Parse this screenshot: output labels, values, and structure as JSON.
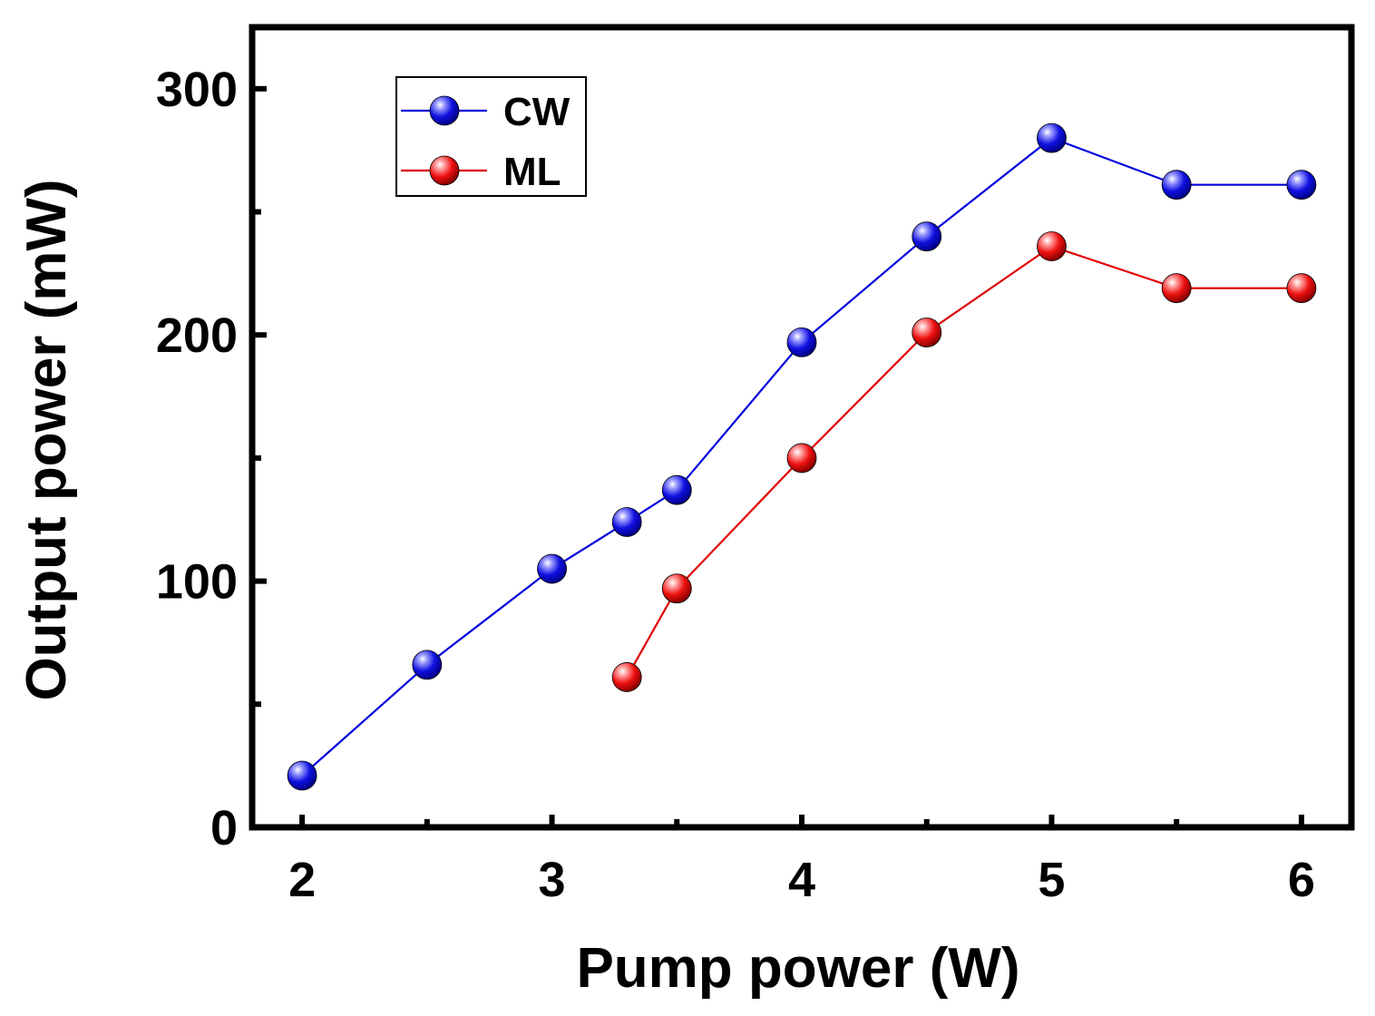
{
  "chart_data": {
    "type": "line",
    "title": "",
    "xlabel": "Pump power (W)",
    "ylabel": "Output power (mW)",
    "xlim": [
      1.8,
      6.2
    ],
    "ylim": [
      0,
      325
    ],
    "xticks": [
      2,
      3,
      4,
      5,
      6
    ],
    "xticks_minor": [
      2.5,
      3.5,
      4.5,
      5.5
    ],
    "yticks": [
      0,
      100,
      200,
      300
    ],
    "yticks_minor": [
      50,
      150,
      250
    ],
    "grid": false,
    "legend_position": "top-left",
    "series": [
      {
        "name": "CW",
        "color": "#0000dd",
        "x": [
          2,
          2.5,
          3,
          3.3,
          3.5,
          4,
          4.5,
          5,
          5.5,
          6
        ],
        "y": [
          21,
          66,
          105,
          124,
          137,
          197,
          240,
          280,
          261,
          261
        ]
      },
      {
        "name": "ML",
        "color": "#e00000",
        "x": [
          3.3,
          3.5,
          4,
          4.5,
          5,
          5.5,
          6
        ],
        "y": [
          61,
          97,
          150,
          201,
          236,
          219,
          219
        ]
      }
    ]
  }
}
